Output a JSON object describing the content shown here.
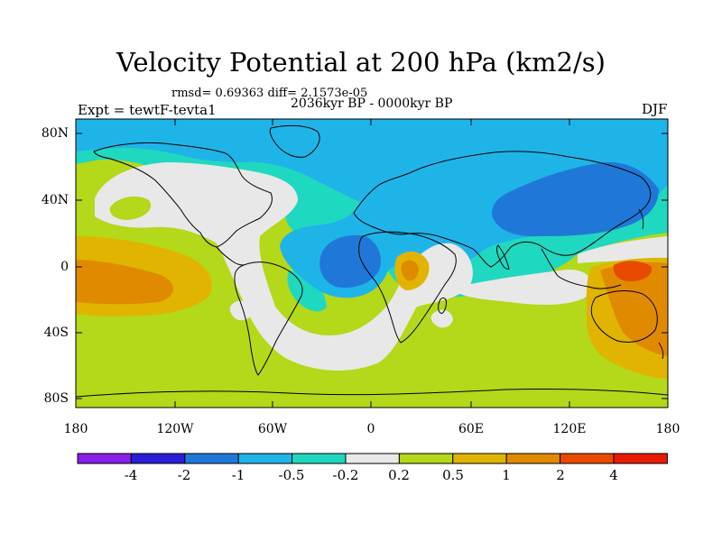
{
  "title": "Velocity Potential at 200 hPa (km2/s)",
  "stats": "rmsd= 0.69363 diff= 2.1573e-05",
  "period": "2036kyr BP - 0000kyr BP",
  "experiment": "Expt = tewtF-tevta1",
  "season": "DJF",
  "lat_labels": [
    "80N",
    "40N",
    "0",
    "40S",
    "80S"
  ],
  "lon_labels": [
    "180",
    "120W",
    "60W",
    "0",
    "60E",
    "120E",
    "180"
  ],
  "colorbar": {
    "colors": [
      "#8a1fe8",
      "#2a1fd8",
      "#1f78d8",
      "#1fb4e8",
      "#1fd8c0",
      "#e8e8e8",
      "#b4d81a",
      "#e0b400",
      "#e08a00",
      "#e84a00",
      "#e81a00"
    ],
    "labels": [
      "-4",
      "-2",
      "-1",
      "-0.5",
      "-0.2",
      "0.2",
      "0.5",
      "1",
      "2",
      "4"
    ]
  },
  "map_colors": {
    "blue_strong": "#1f78d8",
    "blue_light": "#1fb4e8",
    "cyan": "#1fd8c0",
    "neutral": "#e8e8e8",
    "green": "#b4d81a",
    "yellow": "#e0b400",
    "orange": "#e08a00",
    "red_orange": "#e84a00"
  }
}
